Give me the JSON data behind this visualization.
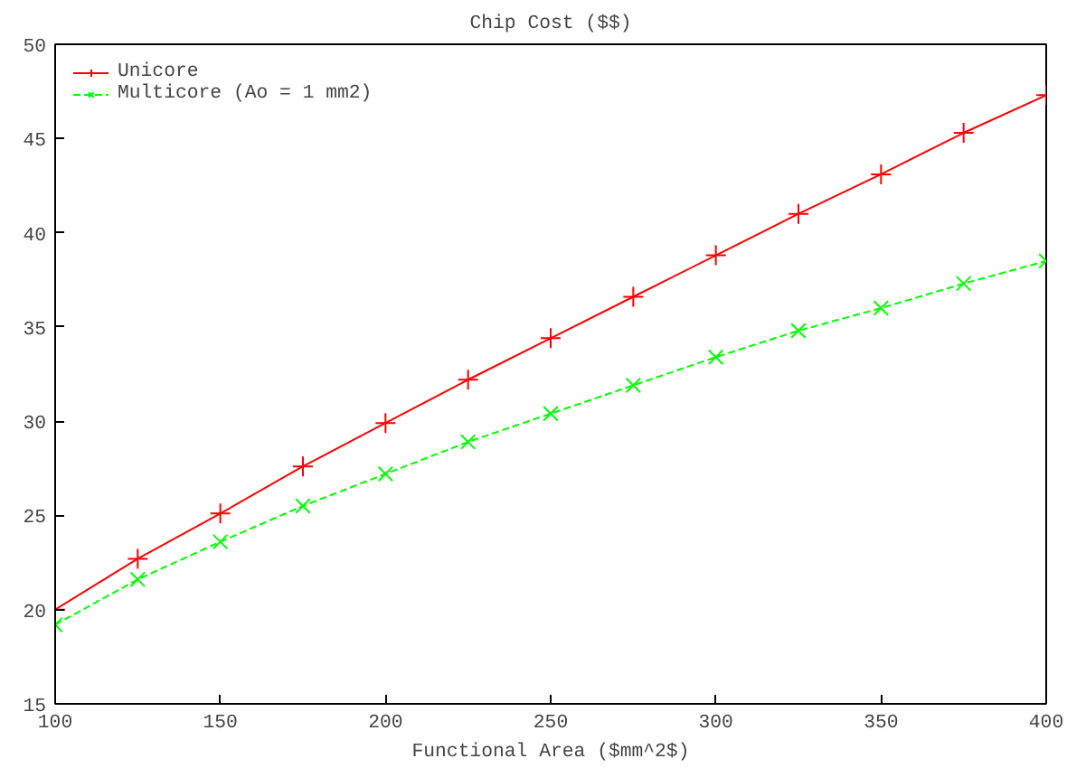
{
  "chart_data": {
    "type": "line",
    "title": "Chip Cost ($$)",
    "xlabel": "Functional Area ($mm^2$)",
    "x": [
      100,
      125,
      150,
      175,
      200,
      225,
      250,
      275,
      300,
      325,
      350,
      375,
      400
    ],
    "series": [
      {
        "name": "Unicore",
        "color": "#ff0000",
        "marker": "cross",
        "line_style": "solid",
        "values": [
          20.0,
          22.7,
          25.1,
          27.6,
          29.9,
          32.2,
          34.4,
          36.6,
          38.8,
          41.0,
          43.1,
          45.3,
          47.3
        ]
      },
      {
        "name": "Multicore (Ao = 1 mm2)",
        "color": "#00ff00",
        "marker": "x",
        "line_style": "dashed",
        "values": [
          19.2,
          21.6,
          23.6,
          25.5,
          27.2,
          28.9,
          30.4,
          31.9,
          33.4,
          34.8,
          36.0,
          37.3,
          38.5
        ]
      }
    ],
    "xlim": [
      100,
      400
    ],
    "ylim": [
      15,
      50
    ],
    "xticks": [
      100,
      150,
      200,
      250,
      300,
      350,
      400
    ],
    "yticks": [
      15,
      20,
      25,
      30,
      35,
      40,
      45,
      50
    ],
    "grid": false,
    "legend": "top left"
  }
}
